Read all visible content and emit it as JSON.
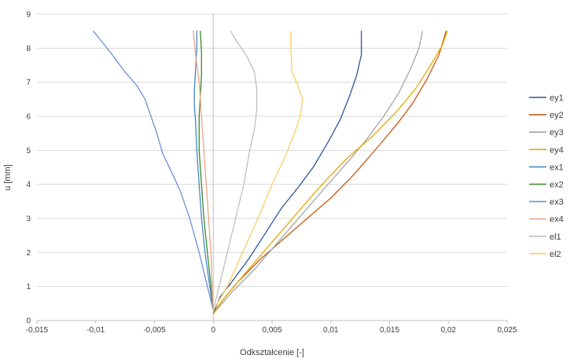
{
  "chart_data": {
    "type": "line",
    "title": "",
    "xlabel": "Odkształcenie [-]",
    "ylabel": "u [mm]",
    "xlim": [
      -0.015,
      0.025
    ],
    "ylim": [
      0,
      9
    ],
    "xticks": [
      -0.015,
      -0.01,
      -0.005,
      0,
      0.005,
      0.01,
      0.015,
      0.02,
      0.025
    ],
    "xtick_labels": [
      "-0,015",
      "-0,01",
      "-0,005",
      "0",
      "0,005",
      "0,01",
      "0,015",
      "0,02",
      "0,025"
    ],
    "yticks": [
      0,
      1,
      2,
      3,
      4,
      5,
      6,
      7,
      8,
      9
    ],
    "ytick_labels": [
      "0",
      "1",
      "2",
      "3",
      "4",
      "5",
      "6",
      "7",
      "8",
      "9"
    ],
    "grid": "horizontal",
    "legend_position": "right",
    "series": [
      {
        "name": "ey1",
        "color": "#2F5597",
        "x": [
          0,
          0.0006,
          0.0015,
          0.003,
          0.0045,
          0.0058,
          0.0072,
          0.0085,
          0.0097,
          0.0108,
          0.0116,
          0.0122,
          0.0126,
          0.0126
        ],
        "y": [
          0.2,
          0.7,
          1.1,
          1.8,
          2.6,
          3.3,
          3.9,
          4.5,
          5.2,
          5.9,
          6.6,
          7.2,
          7.8,
          8.5
        ]
      },
      {
        "name": "ey2",
        "color": "#C55A11",
        "x": [
          0,
          0.0008,
          0.002,
          0.004,
          0.006,
          0.008,
          0.01,
          0.012,
          0.014,
          0.0157,
          0.017,
          0.0182,
          0.0192,
          0.0198
        ],
        "y": [
          0.2,
          0.6,
          1.1,
          1.8,
          2.4,
          3.0,
          3.6,
          4.3,
          5.1,
          5.8,
          6.4,
          7.1,
          7.8,
          8.5
        ]
      },
      {
        "name": "ey3",
        "color": "#A5A5A5",
        "x": [
          0,
          0.0015,
          0.0035,
          0.0055,
          0.0075,
          0.0095,
          0.0113,
          0.013,
          0.0145,
          0.0158,
          0.0168,
          0.0175,
          0.0178
        ],
        "y": [
          0.2,
          0.8,
          1.5,
          2.3,
          3.1,
          3.9,
          4.6,
          5.3,
          6.0,
          6.7,
          7.4,
          8.0,
          8.5
        ]
      },
      {
        "name": "ey4",
        "color": "#E8A800",
        "x": [
          0,
          0.0008,
          0.0025,
          0.0045,
          0.0065,
          0.0085,
          0.0098,
          0.0115,
          0.0135,
          0.0155,
          0.0172,
          0.0185,
          0.0195,
          0.0199
        ],
        "y": [
          0.2,
          0.6,
          1.3,
          2.1,
          2.9,
          3.7,
          4.2,
          4.8,
          5.4,
          6.1,
          6.8,
          7.5,
          8.1,
          8.5
        ]
      },
      {
        "name": "ex1",
        "color": "#4A86C5",
        "x": [
          0,
          -0.0003,
          -0.0007,
          -0.001,
          -0.0012,
          -0.0014,
          -0.0015,
          -0.0016,
          -0.0016,
          -0.0015,
          -0.0014,
          -0.0014
        ],
        "y": [
          0.3,
          1.0,
          2.0,
          3.0,
          4.0,
          5.0,
          5.8,
          6.3,
          6.8,
          7.4,
          8.0,
          8.5
        ]
      },
      {
        "name": "ex2",
        "color": "#3A8A2A",
        "x": [
          0,
          -0.0002,
          -0.0005,
          -0.0008,
          -0.001,
          -0.0012,
          -0.0012,
          -0.0011,
          -0.001,
          -0.001,
          -0.0011
        ],
        "y": [
          0.3,
          1.0,
          2.0,
          3.0,
          4.0,
          5.0,
          6.0,
          6.6,
          7.2,
          7.9,
          8.5
        ]
      },
      {
        "name": "ex3",
        "color": "#6E91D4",
        "x": [
          0,
          -0.0005,
          -0.0012,
          -0.002,
          -0.0028,
          -0.0036,
          -0.0043,
          -0.0048,
          -0.0053,
          -0.0058,
          -0.0065,
          -0.0075,
          -0.0088,
          -0.0102
        ],
        "y": [
          0.3,
          1.0,
          2.0,
          3.0,
          3.8,
          4.4,
          4.9,
          5.5,
          6.0,
          6.5,
          6.9,
          7.3,
          7.9,
          8.5
        ]
      },
      {
        "name": "ex4",
        "color": "#F0A488",
        "x": [
          0,
          -0.0001,
          -0.0002,
          -0.0004,
          -0.0006,
          -0.0008,
          -0.001,
          -0.0012,
          -0.0015,
          -0.0017
        ],
        "y": [
          0.3,
          1.0,
          2.0,
          3.0,
          4.0,
          5.0,
          6.0,
          7.0,
          7.8,
          8.5
        ]
      },
      {
        "name": "el1",
        "color": "#BFBFBF",
        "x": [
          0,
          0.0005,
          0.0012,
          0.0019,
          0.0026,
          0.0031,
          0.0035,
          0.0037,
          0.0037,
          0.0035,
          0.0028,
          0.0018,
          0.0015
        ],
        "y": [
          0.3,
          1.0,
          2.0,
          3.0,
          4.0,
          5.0,
          5.6,
          6.2,
          6.8,
          7.3,
          7.8,
          8.3,
          8.5
        ]
      },
      {
        "name": "el2",
        "color": "#FFCC66",
        "x": [
          0,
          0.0012,
          0.0025,
          0.0038,
          0.005,
          0.0061,
          0.0069,
          0.0074,
          0.0076,
          0.0072,
          0.0067,
          0.0066,
          0.0066
        ],
        "y": [
          0.3,
          1.0,
          2.0,
          3.0,
          4.0,
          4.8,
          5.5,
          6.0,
          6.5,
          6.9,
          7.3,
          8.0,
          8.5
        ]
      }
    ]
  }
}
